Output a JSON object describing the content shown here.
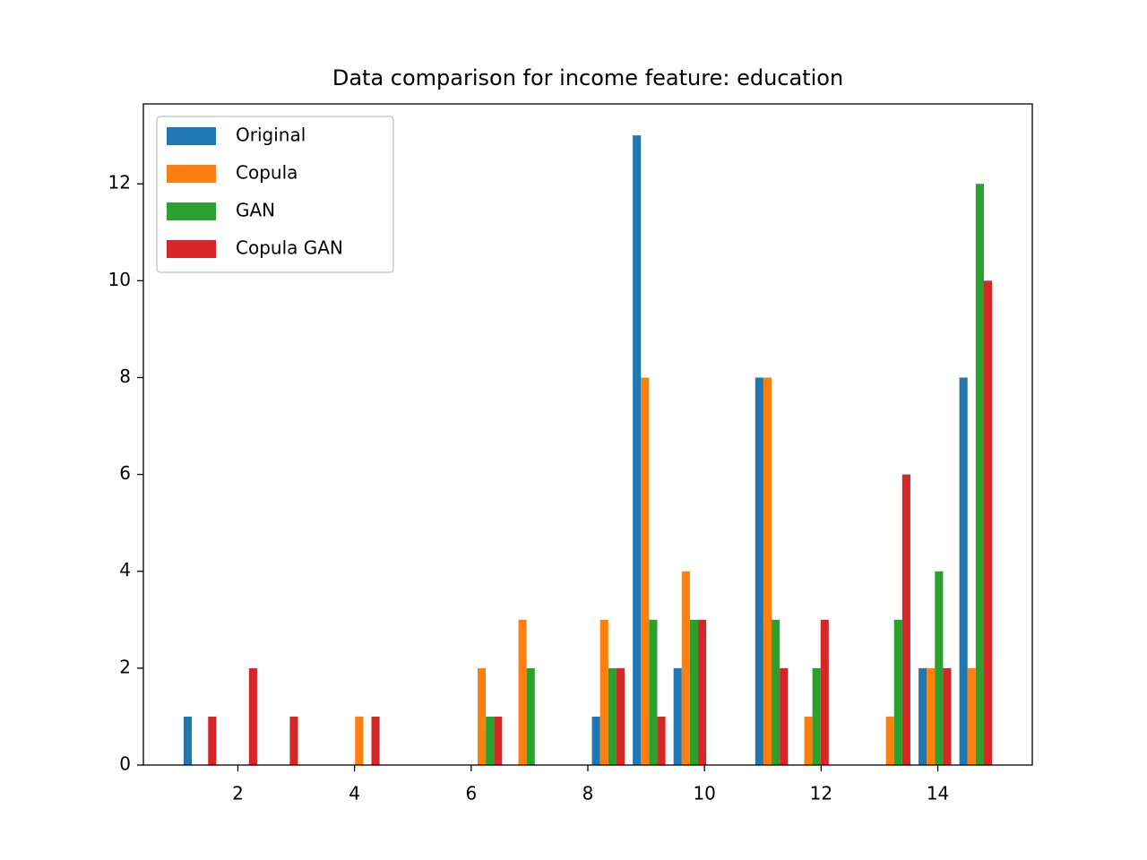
{
  "chart_data": {
    "type": "histogram",
    "title": "Data comparison for income feature: education",
    "bins": [
      1,
      1.7,
      2.4,
      3.1,
      3.8,
      4.5,
      5.2,
      5.9,
      6.6,
      7.3,
      8,
      8.7,
      9.4,
      10.1,
      10.8,
      11.5,
      12.2,
      12.9,
      13.6,
      14.3,
      15
    ],
    "series": [
      {
        "name": "Original",
        "color": "#1f77b4",
        "values": [
          1,
          0,
          0,
          0,
          0,
          0,
          0,
          0,
          0,
          0,
          1,
          13,
          2,
          0,
          8,
          0,
          0,
          0,
          2,
          8
        ]
      },
      {
        "name": "Copula",
        "color": "#ff7f0e",
        "values": [
          0,
          0,
          0,
          0,
          1,
          0,
          0,
          2,
          3,
          0,
          3,
          8,
          4,
          0,
          8,
          1,
          0,
          1,
          2,
          2
        ]
      },
      {
        "name": "GAN",
        "color": "#2ca02c",
        "values": [
          0,
          0,
          0,
          0,
          0,
          0,
          0,
          1,
          2,
          0,
          2,
          3,
          3,
          0,
          3,
          2,
          0,
          3,
          4,
          12
        ]
      },
      {
        "name": "Copula GAN",
        "color": "#d62728",
        "values": [
          1,
          2,
          1,
          0,
          1,
          0,
          0,
          1,
          0,
          0,
          2,
          1,
          3,
          0,
          2,
          3,
          0,
          6,
          2,
          10
        ]
      }
    ],
    "xlim": [
      0.38,
      15.62
    ],
    "xticks": [
      2,
      4,
      6,
      8,
      10,
      12,
      14
    ],
    "ylim": [
      0,
      13.65
    ],
    "yticks": [
      0,
      2,
      4,
      6,
      8,
      10,
      12
    ],
    "legend": "upper left",
    "grid": false
  }
}
